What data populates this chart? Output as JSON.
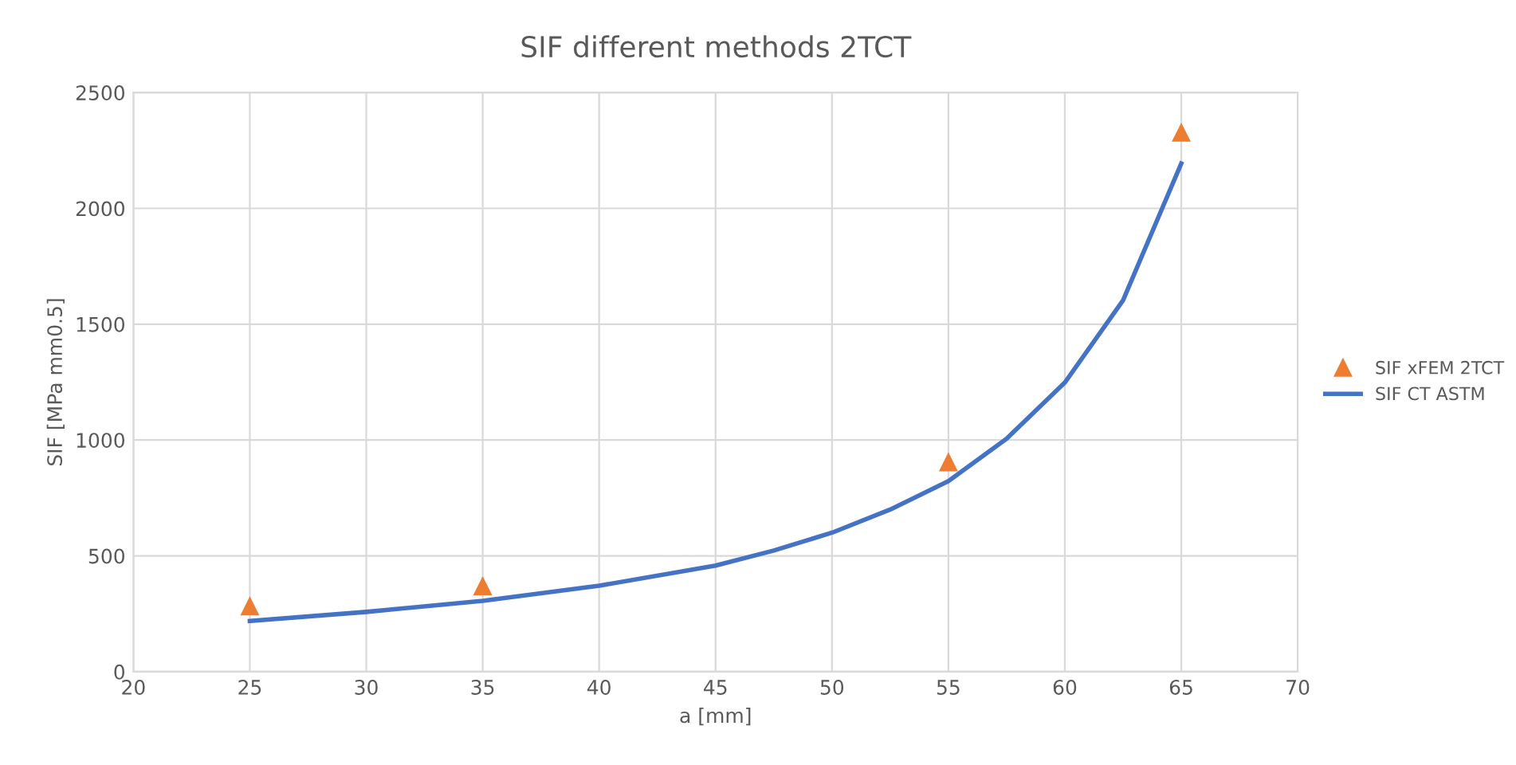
{
  "chart_data": {
    "type": "line",
    "title": "SIF different methods 2TCT",
    "xlabel": "a [mm]",
    "ylabel": "SIF [MPa mm0.5]",
    "xlim": [
      20,
      70
    ],
    "xticks": [
      20,
      25,
      30,
      35,
      40,
      45,
      50,
      55,
      60,
      65,
      70
    ],
    "ylim": [
      0,
      2500
    ],
    "yticks": [
      0,
      500,
      1000,
      1500,
      2000,
      2500
    ],
    "grid": true,
    "legend": "right",
    "series": [
      {
        "name": "SIF xFEM 2TCT",
        "type": "scatter",
        "marker": "triangle",
        "color": "#ed7d31",
        "x": [
          25,
          35,
          55,
          65
        ],
        "values": [
          281,
          368,
          903,
          2326
        ]
      },
      {
        "name": "SIF CT ASTM",
        "marker": "none",
        "color": "#4472c4",
        "x": [
          25,
          30,
          35,
          40,
          45,
          47.5,
          50,
          52.5,
          55,
          57.5,
          60,
          62.5,
          65
        ],
        "values": [
          219,
          258,
          306,
          371,
          458,
          523,
          600,
          700,
          823,
          1006,
          1248,
          1603,
          2194
        ]
      }
    ]
  }
}
